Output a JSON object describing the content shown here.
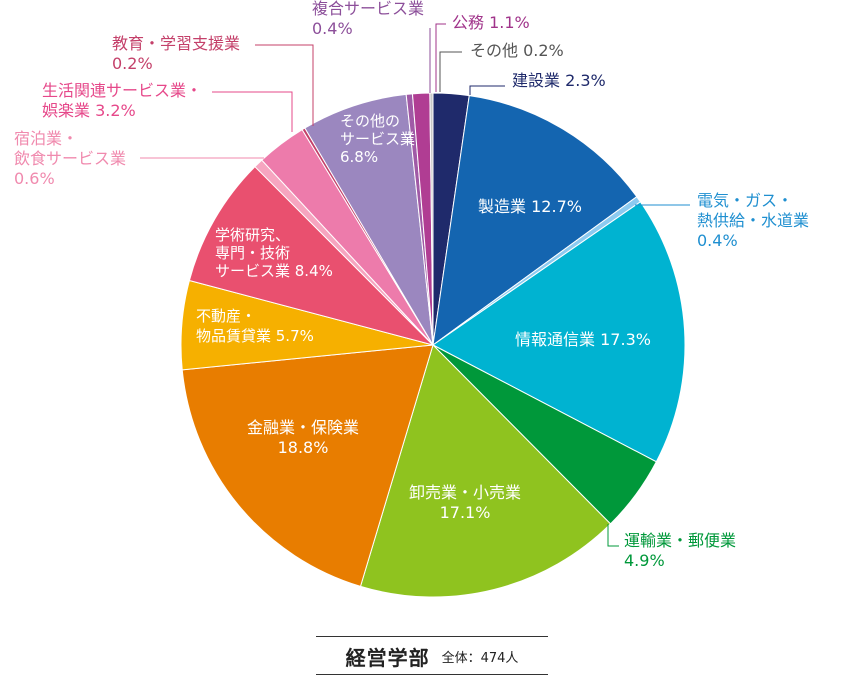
{
  "chart_data": {
    "type": "pie",
    "start_angle_deg": 90,
    "direction": "clockwise",
    "slices": [
      {
        "label_lines": [
          "建設業 2.3%"
        ],
        "value": 2.3,
        "color": "#1f2a6b",
        "label_color": "#1f2a6b",
        "inside": false
      },
      {
        "label_lines": [
          "製造業 12.7%"
        ],
        "value": 12.7,
        "color": "#1465b0",
        "label_color": "#ffffff",
        "inside": true
      },
      {
        "label_lines": [
          "電気・ガス・",
          "熱供給・水道業",
          "0.4%"
        ],
        "value": 0.4,
        "color": "#8ccaf0",
        "label_color": "#1f8fd0",
        "inside": false
      },
      {
        "label_lines": [
          "情報通信業 17.3%"
        ],
        "value": 17.3,
        "color": "#00b3d1",
        "label_color": "#ffffff",
        "inside": true
      },
      {
        "label_lines": [
          "運輸業・郵便業",
          "4.9%"
        ],
        "value": 4.9,
        "color": "#00983a",
        "label_color": "#00983a",
        "inside": false
      },
      {
        "label_lines": [
          "卸売業・小売業",
          "17.1%"
        ],
        "value": 17.1,
        "color": "#8fc31f",
        "label_color": "#ffffff",
        "inside": true
      },
      {
        "label_lines": [
          "金融業・保険業",
          "18.8%"
        ],
        "value": 18.8,
        "color": "#e87d00",
        "label_color": "#ffffff",
        "inside": true
      },
      {
        "label_lines": [
          "不動産・",
          "物品賃貸業 5.7%"
        ],
        "value": 5.7,
        "color": "#f6b000",
        "label_color": "#ffffff",
        "inside": true
      },
      {
        "label_lines": [
          "学術研究、",
          "専門・技術",
          "サービス業 8.4%"
        ],
        "value": 8.4,
        "color": "#e9506f",
        "label_color": "#ffffff",
        "inside": true
      },
      {
        "label_lines": [
          "宿泊業・",
          "飲食サービス業",
          "0.6%"
        ],
        "value": 0.6,
        "color": "#f6a5c0",
        "label_color": "#f08aae",
        "inside": false
      },
      {
        "label_lines": [
          "生活関連サービス業・",
          "娯楽業 3.2%"
        ],
        "value": 3.2,
        "color": "#ed7bab",
        "label_color": "#e6488a",
        "inside": false
      },
      {
        "label_lines": [
          "教育・学習支援業",
          "0.2%"
        ],
        "value": 0.2,
        "color": "#c4406a",
        "label_color": "#c4406a",
        "inside": false
      },
      {
        "label_lines": [
          "その他の",
          "サービス業",
          "6.8%"
        ],
        "value": 6.8,
        "color": "#9b87bf",
        "label_color": "#ffffff",
        "inside": true
      },
      {
        "label_lines": [
          "複合サービス業",
          "0.4%"
        ],
        "value": 0.4,
        "color": "#a05aa6",
        "label_color": "#8c4f9a",
        "inside": false
      },
      {
        "label_lines": [
          "公務 1.1%"
        ],
        "value": 1.1,
        "color": "#b03d93",
        "label_color": "#a0338a",
        "inside": false
      },
      {
        "label_lines": [
          "その他 0.2%"
        ],
        "value": 0.2,
        "color": "#c8c8c8",
        "label_color": "#555555",
        "inside": false
      }
    ]
  },
  "footer": {
    "title": "経営学部",
    "total": "全体：474人"
  }
}
